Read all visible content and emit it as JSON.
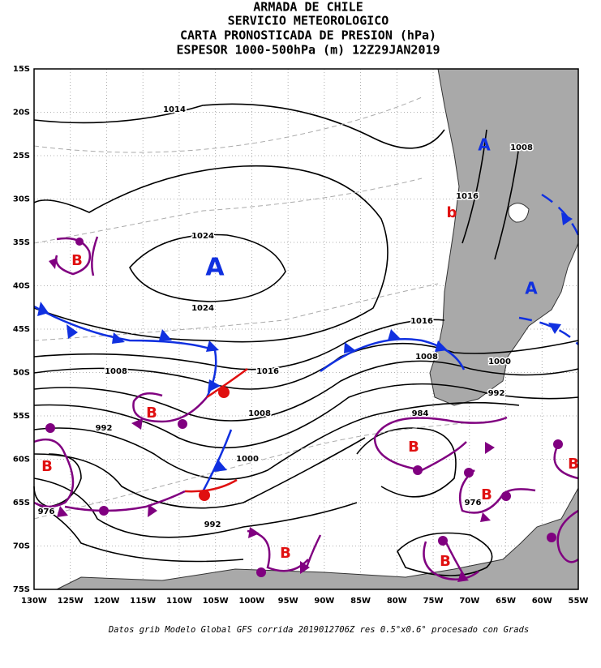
{
  "header": {
    "lines": [
      "ARMADA DE CHILE",
      "SERVICIO METEOROLOGICO",
      "CARTA PRONOSTICADA DE PRESION (hPa)",
      "ESPESOR 1000-500hPa (m) 12Z29JAN2019"
    ]
  },
  "axes": {
    "lat_labels": [
      "15S",
      "20S",
      "25S",
      "30S",
      "35S",
      "40S",
      "45S",
      "50S",
      "55S",
      "60S",
      "65S",
      "70S",
      "75S"
    ],
    "lon_labels": [
      "130W",
      "125W",
      "120W",
      "115W",
      "110W",
      "105W",
      "100W",
      "95W",
      "90W",
      "85W",
      "80W",
      "75W",
      "70W",
      "65W",
      "60W",
      "55W"
    ]
  },
  "isobar_labels": [
    "1014",
    "1024",
    "1024",
    "1016",
    "1008",
    "1008",
    "1000",
    "992",
    "992",
    "976",
    "1008",
    "1016",
    "1016",
    "1008",
    "1000",
    "992",
    "984",
    "976"
  ],
  "pressure_centers": [
    "A",
    "A",
    "A",
    "B",
    "B",
    "B",
    "B",
    "B",
    "B",
    "B",
    "B",
    "b"
  ],
  "footer": "Datos grib Modelo Global GFS corrida 2019012706Z res 0.5°x0.6° procesado con Grads"
}
